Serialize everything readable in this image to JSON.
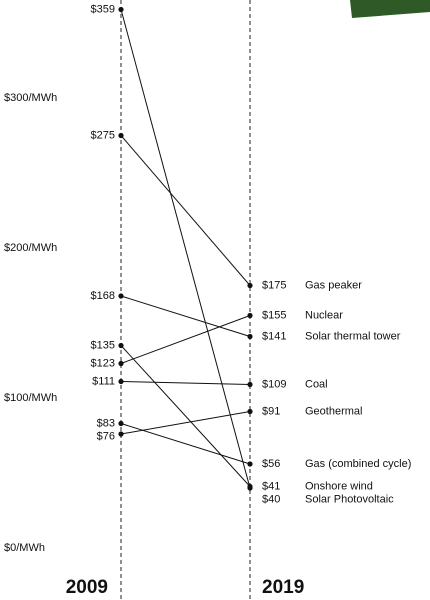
{
  "chart_data": {
    "type": "slope",
    "categories": [
      "2009",
      "2019"
    ],
    "ylim": [
      0,
      360
    ],
    "yticks": [
      {
        "value": 0,
        "label": "$0/MWh"
      },
      {
        "value": 100,
        "label": "$100/MWh"
      },
      {
        "value": 200,
        "label": "$200/MWh"
      },
      {
        "value": 300,
        "label": "$300/MWh"
      }
    ],
    "color": "#111111",
    "series": [
      {
        "name": "Gas peaker",
        "values": [
          275,
          175
        ],
        "value_labels": [
          "$275",
          "$175"
        ]
      },
      {
        "name": "Nuclear",
        "values": [
          123,
          155
        ],
        "value_labels": [
          "$123",
          "$155"
        ]
      },
      {
        "name": "Solar thermal tower",
        "values": [
          168,
          141
        ],
        "value_labels": [
          "$168",
          "$141"
        ]
      },
      {
        "name": "Coal",
        "values": [
          111,
          109
        ],
        "value_labels": [
          "$111",
          "$109"
        ]
      },
      {
        "name": "Geothermal",
        "values": [
          76,
          91
        ],
        "value_labels": [
          "$76",
          "$91"
        ]
      },
      {
        "name": "Gas (combined cycle)",
        "values": [
          83,
          56
        ],
        "value_labels": [
          "$83",
          "$56"
        ]
      },
      {
        "name": "Onshore wind",
        "values": [
          135,
          41
        ],
        "value_labels": [
          "$135",
          "$41"
        ]
      },
      {
        "name": "Solar Photovoltaic",
        "values": [
          359,
          40
        ],
        "value_labels": [
          "$359",
          "$40"
        ]
      }
    ]
  }
}
